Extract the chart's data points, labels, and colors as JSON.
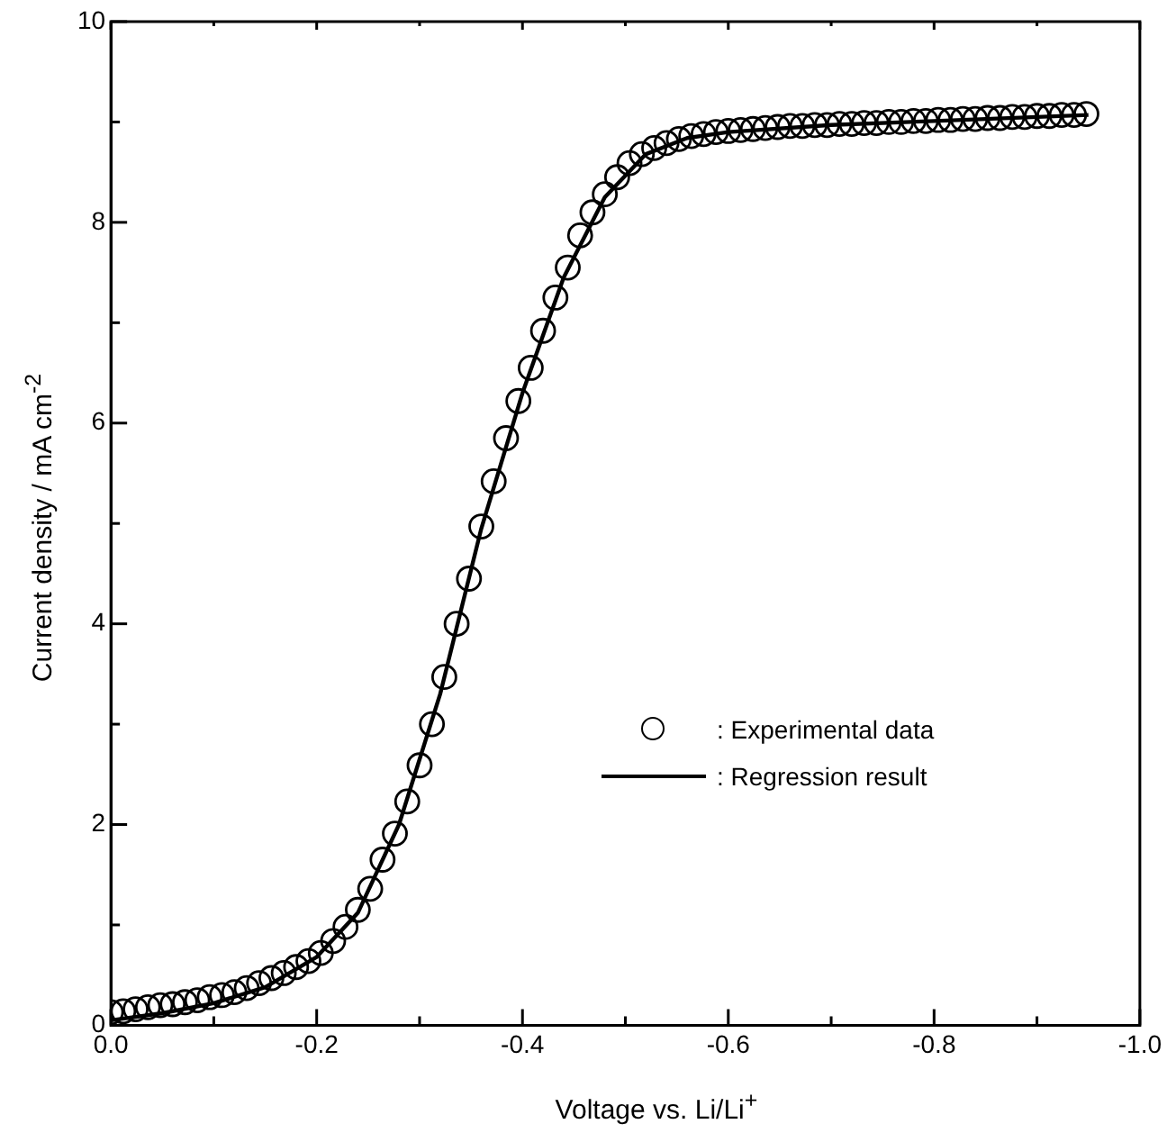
{
  "chart_data": {
    "type": "scatter",
    "xlabel": "Voltage vs. Li/Li$^{+}$",
    "ylabel": "Current density / mA cm$^{-2}$",
    "xlim": [
      0,
      -1
    ],
    "ylim": [
      0,
      10
    ],
    "xticks": [
      {
        "value": 0,
        "label": "0.0"
      },
      {
        "value": -0.1,
        "label": null
      },
      -0.2,
      {
        "value": -0.3,
        "label": null
      },
      -0.4,
      {
        "value": -0.5,
        "label": null
      },
      -0.6,
      {
        "value": -0.7,
        "label": null
      },
      -0.8,
      {
        "value": -0.9,
        "label": null
      },
      {
        "value": -1,
        "label": "-1.0"
      }
    ],
    "yticks": [
      0,
      {
        "value": 1,
        "label": null
      },
      2,
      {
        "value": 3,
        "label": null
      },
      4,
      {
        "value": 5,
        "label": null
      },
      6,
      {
        "value": 7,
        "label": null
      },
      8,
      {
        "value": 9,
        "label": null
      },
      10
    ],
    "grid": false,
    "legend": "center right",
    "series": [
      {
        "name": ": Experimental data",
        "marker": "circle",
        "color": "#000000",
        "x": [
          0,
          -0.012,
          -0.024,
          -0.036,
          -0.048,
          -0.06,
          -0.072,
          -0.084,
          -0.096,
          -0.108,
          -0.12,
          -0.132,
          -0.144,
          -0.156,
          -0.168,
          -0.18,
          -0.192,
          -0.204,
          -0.216,
          -0.228,
          -0.24,
          -0.252,
          -0.264,
          -0.276,
          -0.288,
          -0.3,
          -0.312,
          -0.324,
          -0.336,
          -0.348,
          -0.36,
          -0.372,
          -0.384,
          -0.396,
          -0.408,
          -0.42,
          -0.432,
          -0.444,
          -0.456,
          -0.468,
          -0.48,
          -0.492,
          -0.504,
          -0.516,
          -0.528,
          -0.54,
          -0.552,
          -0.564,
          -0.576,
          -0.588,
          -0.6,
          -0.612,
          -0.624,
          -0.636,
          -0.648,
          -0.66,
          -0.672,
          -0.684,
          -0.696,
          -0.708,
          -0.72,
          -0.732,
          -0.744,
          -0.756,
          -0.768,
          -0.78,
          -0.792,
          -0.804,
          -0.816,
          -0.828,
          -0.84,
          -0.852,
          -0.864,
          -0.876,
          -0.888,
          -0.9,
          -0.912,
          -0.924,
          -0.936,
          -0.948
        ],
        "values": [
          0.13,
          0.14,
          0.16,
          0.18,
          0.2,
          0.21,
          0.23,
          0.25,
          0.28,
          0.3,
          0.33,
          0.37,
          0.42,
          0.47,
          0.52,
          0.58,
          0.64,
          0.72,
          0.84,
          0.98,
          1.15,
          1.36,
          1.65,
          1.91,
          2.23,
          2.59,
          3.0,
          3.47,
          4.0,
          4.45,
          4.97,
          5.42,
          5.85,
          6.22,
          6.55,
          6.92,
          7.25,
          7.55,
          7.87,
          8.1,
          8.28,
          8.45,
          8.59,
          8.68,
          8.74,
          8.79,
          8.83,
          8.86,
          8.88,
          8.9,
          8.91,
          8.92,
          8.93,
          8.94,
          8.95,
          8.96,
          8.96,
          8.97,
          8.97,
          8.98,
          8.98,
          8.99,
          8.99,
          9.0,
          9.0,
          9.01,
          9.01,
          9.02,
          9.02,
          9.03,
          9.03,
          9.04,
          9.04,
          9.05,
          9.05,
          9.06,
          9.06,
          9.07,
          9.07,
          9.08
        ]
      },
      {
        "name": ": Regression result",
        "type": "line",
        "marker": "none",
        "line_style": "solid",
        "color": "#000000",
        "x": [
          0,
          -0.05,
          -0.1,
          -0.15,
          -0.2,
          -0.24,
          -0.28,
          -0.32,
          -0.36,
          -0.4,
          -0.44,
          -0.48,
          -0.52,
          -0.56,
          -0.6,
          -0.7,
          -0.8,
          -0.9,
          -0.95
        ],
        "values": [
          0.05,
          0.12,
          0.22,
          0.38,
          0.68,
          1.12,
          2.0,
          3.3,
          4.95,
          6.3,
          7.45,
          8.25,
          8.68,
          8.84,
          8.9,
          8.97,
          9.01,
          9.05,
          9.07
        ]
      }
    ]
  }
}
